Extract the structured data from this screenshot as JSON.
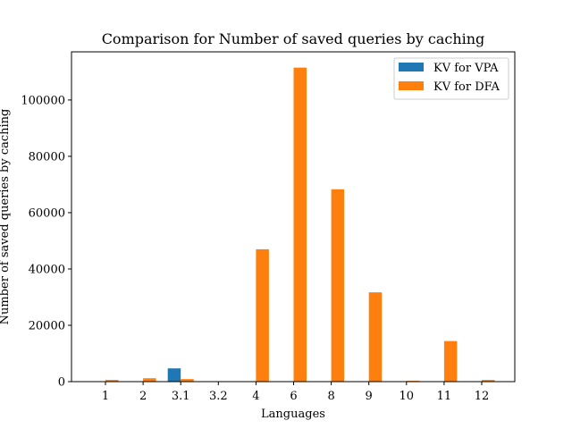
{
  "chart_data": {
    "type": "bar",
    "title": "Comparison for Number of saved queries by caching",
    "xlabel": "Languages",
    "ylabel": "Number of saved queries by caching",
    "categories": [
      "1",
      "2",
      "3.1",
      "3.2",
      "4",
      "6",
      "8",
      "9",
      "10",
      "11",
      "12"
    ],
    "series": [
      {
        "name": "KV for VPA",
        "color": "#1f77b4",
        "values": [
          0,
          0,
          4700,
          0,
          0,
          0,
          0,
          0,
          0,
          0,
          0
        ]
      },
      {
        "name": "KV for DFA",
        "color": "#ff7f0e",
        "values": [
          600,
          1200,
          900,
          0,
          47000,
          111500,
          68300,
          31700,
          300,
          14400,
          600
        ]
      }
    ],
    "ylim": [
      0,
      117100
    ],
    "yticks": [
      0,
      20000,
      40000,
      60000,
      80000,
      100000
    ],
    "ytick_labels": [
      "0",
      "20000",
      "40000",
      "60000",
      "80000",
      "100000"
    ],
    "grid": false,
    "legend_position": "top-right"
  }
}
